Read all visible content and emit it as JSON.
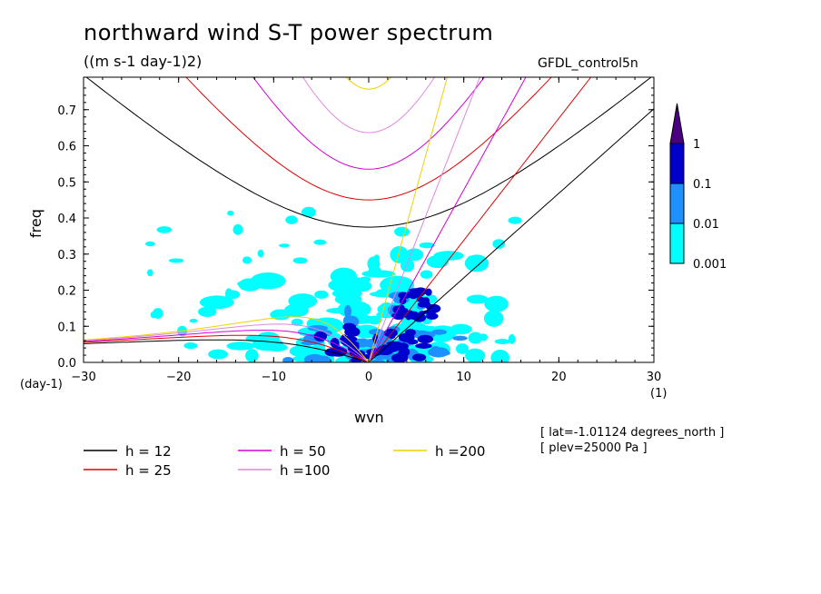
{
  "chart_data": {
    "type": "contour",
    "title": "northward wind S-T power spectrum",
    "subtitle": "((m s-1 day-1)2)",
    "dataset": "GFDL_control5n",
    "xlabel": "wvn",
    "ylabel": "freq",
    "x_unit_label": "(1)",
    "y_unit_label": "(day-1)",
    "xlim": [
      -30,
      30
    ],
    "ylim": [
      0,
      0.79
    ],
    "xticks": [
      "-30",
      "-20",
      "-10",
      "0",
      "10",
      "20",
      "30"
    ],
    "yticks": [
      "0.0",
      "0.1",
      "0.2",
      "0.3",
      "0.4",
      "0.5",
      "0.6",
      "0.7"
    ],
    "colorbar": {
      "levels": [
        "0.001",
        "0.01",
        "0.1",
        "1"
      ],
      "colors": [
        "#00ffff",
        "#1e90ff",
        "#0000cd",
        "#4b0082"
      ]
    },
    "legend": [
      {
        "label": "h = 12",
        "color": "#000000"
      },
      {
        "label": "h = 50",
        "color": "#d800d8"
      },
      {
        "label": "h =200",
        "color": "#f0d000"
      },
      {
        "label": "h = 25",
        "color": "#e00000"
      },
      {
        "label": "h =100",
        "color": "#dd88dd"
      }
    ],
    "notes": [
      "[ lat=-1.01124 degrees_north ]",
      "[ plev=25000 Pa ]"
    ]
  }
}
